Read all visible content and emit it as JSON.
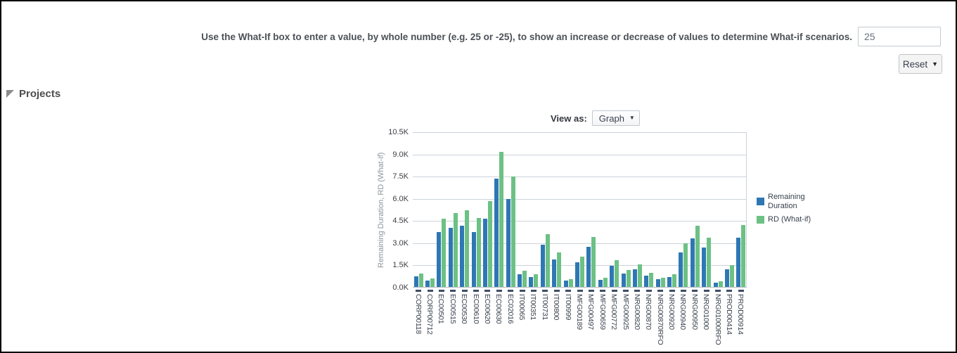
{
  "page": {
    "instruction": "Use the What-If box to enter a value, by whole number (e.g. 25 or -25), to show an increase or decrease of values to determine What-if scenarios.",
    "whatif_input_value": "25",
    "reset_label": "Reset",
    "projects_header": "Projects",
    "view_as_label": "View as:",
    "view_as_value": "Graph"
  },
  "icons": {
    "dropdown_arrow": "▼"
  },
  "chart_data": {
    "type": "bar",
    "title": "",
    "xlabel": "",
    "ylabel": "Remaining Duration, RD (What-if)",
    "y_unit": "K",
    "ylim": [
      0,
      10.5
    ],
    "y_ticks": [
      "0.0K",
      "1.5K",
      "3.0K",
      "4.5K",
      "6.0K",
      "7.5K",
      "9.0K",
      "10.5K"
    ],
    "grid": true,
    "legend_position": "right",
    "categories": [
      "CORP00118",
      "CORP00712",
      "EC00501",
      "EC00515",
      "EC00530",
      "EC00610",
      "EC00620",
      "EC00630",
      "EC02016",
      "IT00065",
      "IT00351",
      "IT00731",
      "IT00800",
      "IT00999",
      "MFG00189",
      "MFG00497",
      "MFG00659",
      "MFG00772",
      "MFG00925",
      "NRG00820",
      "NRG00870",
      "NRG00870RFO",
      "NRG00920",
      "NRG00940",
      "NRG00950",
      "NRG01000",
      "NRG01000RFO",
      "PROD00414",
      "PROD00914"
    ],
    "series": [
      {
        "name": "Remaining Duration",
        "color": "#2f77b4",
        "values": [
          0.72,
          0.45,
          3.7,
          4.0,
          4.15,
          3.73,
          4.63,
          7.3,
          5.95,
          0.87,
          0.68,
          2.85,
          1.85,
          0.42,
          1.65,
          2.7,
          0.48,
          1.44,
          0.9,
          1.2,
          0.75,
          0.5,
          0.68,
          2.35,
          3.3,
          2.67,
          0.3,
          1.18,
          3.35
        ]
      },
      {
        "name": "RD (What-if)",
        "color": "#6cc184",
        "values": [
          0.9,
          0.56,
          4.63,
          5.0,
          5.19,
          4.66,
          5.79,
          9.13,
          7.44,
          1.09,
          0.85,
          3.56,
          2.31,
          0.53,
          2.06,
          3.38,
          0.6,
          1.8,
          1.13,
          1.5,
          0.94,
          0.63,
          0.85,
          2.94,
          4.13,
          3.34,
          0.38,
          1.48,
          4.19
        ]
      }
    ]
  }
}
